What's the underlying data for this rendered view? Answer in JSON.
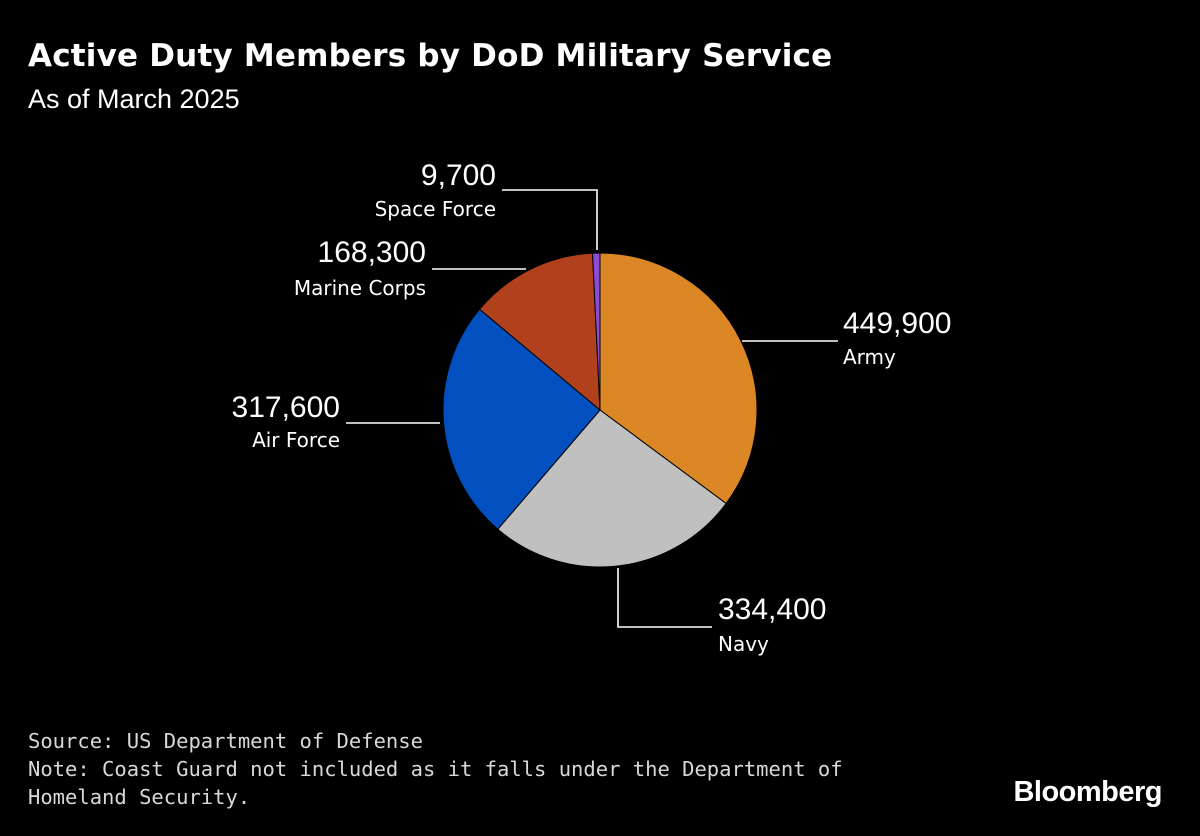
{
  "header": {
    "title": "Active Duty Members by DoD Military Service",
    "subtitle": "As of March 2025"
  },
  "chart_data": {
    "type": "pie",
    "title": "Active Duty Members by DoD Military Service",
    "subtitle": "As of March 2025",
    "start_angle_deg": 0,
    "direction": "clockwise",
    "slices": [
      {
        "label": "Army",
        "value": 449900,
        "value_label": "449,900",
        "color": "#db8726"
      },
      {
        "label": "Navy",
        "value": 334400,
        "value_label": "334,400",
        "color": "#c0c0c0"
      },
      {
        "label": "Air Force",
        "value": 317600,
        "value_label": "317,600",
        "color": "#0250c0"
      },
      {
        "label": "Marine Corps",
        "value": 168300,
        "value_label": "168,300",
        "color": "#b1401d"
      },
      {
        "label": "Space Force",
        "value": 9700,
        "value_label": "9,700",
        "color": "#8a4bd6"
      }
    ]
  },
  "footer": {
    "source": "Source: US Department of Defense",
    "note_line1": "Note: Coast Guard not included as it falls under the Department of",
    "note_line2": "Homeland Security.",
    "brand": "Bloomberg"
  }
}
